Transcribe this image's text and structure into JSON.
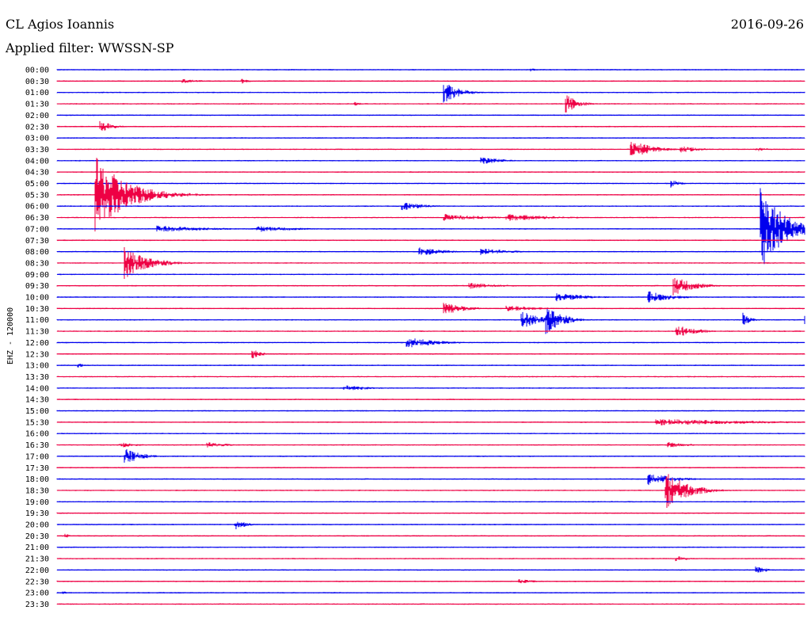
{
  "header": {
    "station": "CL Agios Ioannis",
    "date": "2016-09-26",
    "filter_label": "Applied filter: WWSSN-SP"
  },
  "colors": {
    "odd_trace": "#0000ee",
    "even_trace": "#ee0044"
  },
  "chart_data": {
    "type": "line",
    "ylabel": "EHZ - 120000",
    "rows": [
      "00:00",
      "00:30",
      "01:00",
      "01:30",
      "02:00",
      "02:30",
      "03:00",
      "03:30",
      "04:00",
      "04:30",
      "05:00",
      "05:30",
      "06:00",
      "06:30",
      "07:00",
      "07:30",
      "08:00",
      "08:30",
      "09:00",
      "09:30",
      "10:00",
      "10:30",
      "11:00",
      "11:30",
      "12:00",
      "12:30",
      "13:00",
      "13:30",
      "14:00",
      "14:30",
      "15:00",
      "15:30",
      "16:00",
      "16:30",
      "17:00",
      "17:30",
      "18:00",
      "18:30",
      "19:00",
      "19:30",
      "20:00",
      "20:30",
      "21:00",
      "21:30",
      "22:00",
      "22:30",
      "23:00",
      "23:30"
    ],
    "events": [
      {
        "row": 0,
        "minute": 19.0,
        "amp": 0.15,
        "dur": 0.6
      },
      {
        "row": 1,
        "minute": 5.0,
        "amp": 0.2,
        "dur": 1.5
      },
      {
        "row": 1,
        "minute": 7.4,
        "amp": 0.25,
        "dur": 0.5
      },
      {
        "row": 2,
        "minute": 15.5,
        "amp": 1.0,
        "dur": 1.0
      },
      {
        "row": 3,
        "minute": 11.9,
        "amp": 0.25,
        "dur": 0.4
      },
      {
        "row": 3,
        "minute": 20.4,
        "amp": 0.9,
        "dur": 0.8
      },
      {
        "row": 5,
        "minute": 1.7,
        "amp": 0.6,
        "dur": 0.8
      },
      {
        "row": 7,
        "minute": 23.0,
        "amp": 0.9,
        "dur": 1.3
      },
      {
        "row": 7,
        "minute": 25.0,
        "amp": 0.3,
        "dur": 1.5
      },
      {
        "row": 7,
        "minute": 28.0,
        "amp": 0.2,
        "dur": 1.0
      },
      {
        "row": 8,
        "minute": 17.0,
        "amp": 0.4,
        "dur": 1.3
      },
      {
        "row": 10,
        "minute": 24.6,
        "amp": 0.45,
        "dur": 0.6
      },
      {
        "row": 11,
        "minute": 1.5,
        "amp": 3.5,
        "dur": 2.0
      },
      {
        "row": 12,
        "minute": 13.8,
        "amp": 0.4,
        "dur": 1.5
      },
      {
        "row": 13,
        "minute": 15.5,
        "amp": 0.35,
        "dur": 2.5
      },
      {
        "row": 13,
        "minute": 18.0,
        "amp": 0.35,
        "dur": 3.0
      },
      {
        "row": 14,
        "minute": 4.0,
        "amp": 0.3,
        "dur": 3.5
      },
      {
        "row": 14,
        "minute": 8.0,
        "amp": 0.3,
        "dur": 2.5
      },
      {
        "row": 14,
        "minute": 28.2,
        "amp": 4.0,
        "dur": 1.5
      },
      {
        "row": 16,
        "minute": 14.5,
        "amp": 0.45,
        "dur": 1.5
      },
      {
        "row": 16,
        "minute": 17.0,
        "amp": 0.3,
        "dur": 2.0
      },
      {
        "row": 17,
        "minute": 2.7,
        "amp": 1.5,
        "dur": 1.5
      },
      {
        "row": 19,
        "minute": 16.5,
        "amp": 0.3,
        "dur": 2.0
      },
      {
        "row": 19,
        "minute": 24.7,
        "amp": 1.0,
        "dur": 1.2
      },
      {
        "row": 20,
        "minute": 20.0,
        "amp": 0.4,
        "dur": 2.0
      },
      {
        "row": 20,
        "minute": 23.7,
        "amp": 0.55,
        "dur": 1.5
      },
      {
        "row": 21,
        "minute": 15.5,
        "amp": 0.6,
        "dur": 1.3
      },
      {
        "row": 21,
        "minute": 18.0,
        "amp": 0.3,
        "dur": 2.0
      },
      {
        "row": 22,
        "minute": 18.6,
        "amp": 0.9,
        "dur": 1.2
      },
      {
        "row": 22,
        "minute": 19.6,
        "amp": 1.5,
        "dur": 1.0
      },
      {
        "row": 22,
        "minute": 27.5,
        "amp": 0.7,
        "dur": 0.5
      },
      {
        "row": 22,
        "minute": 30.0,
        "amp": 0.4,
        "dur": 0.4
      },
      {
        "row": 23,
        "minute": 24.8,
        "amp": 0.6,
        "dur": 1.3
      },
      {
        "row": 24,
        "minute": 14.0,
        "amp": 0.5,
        "dur": 2.0
      },
      {
        "row": 25,
        "minute": 7.8,
        "amp": 0.5,
        "dur": 0.6
      },
      {
        "row": 26,
        "minute": 0.8,
        "amp": 0.3,
        "dur": 0.4
      },
      {
        "row": 28,
        "minute": 11.5,
        "amp": 0.25,
        "dur": 2.0
      },
      {
        "row": 31,
        "minute": 24.0,
        "amp": 0.3,
        "dur": 7.0
      },
      {
        "row": 33,
        "minute": 2.5,
        "amp": 0.3,
        "dur": 1.0
      },
      {
        "row": 33,
        "minute": 6.0,
        "amp": 0.25,
        "dur": 1.5
      },
      {
        "row": 33,
        "minute": 24.5,
        "amp": 0.25,
        "dur": 1.5
      },
      {
        "row": 34,
        "minute": 2.7,
        "amp": 0.8,
        "dur": 1.0
      },
      {
        "row": 36,
        "minute": 23.7,
        "amp": 0.55,
        "dur": 1.8
      },
      {
        "row": 37,
        "minute": 24.4,
        "amp": 1.9,
        "dur": 1.3
      },
      {
        "row": 40,
        "minute": 7.1,
        "amp": 0.55,
        "dur": 0.7
      },
      {
        "row": 41,
        "minute": 0.3,
        "amp": 0.2,
        "dur": 0.5
      },
      {
        "row": 43,
        "minute": 24.8,
        "amp": 0.25,
        "dur": 1.0
      },
      {
        "row": 44,
        "minute": 28.0,
        "amp": 0.5,
        "dur": 0.6
      },
      {
        "row": 45,
        "minute": 18.5,
        "amp": 0.25,
        "dur": 1.0
      },
      {
        "row": 46,
        "minute": 0.2,
        "amp": 0.2,
        "dur": 0.3
      }
    ]
  }
}
